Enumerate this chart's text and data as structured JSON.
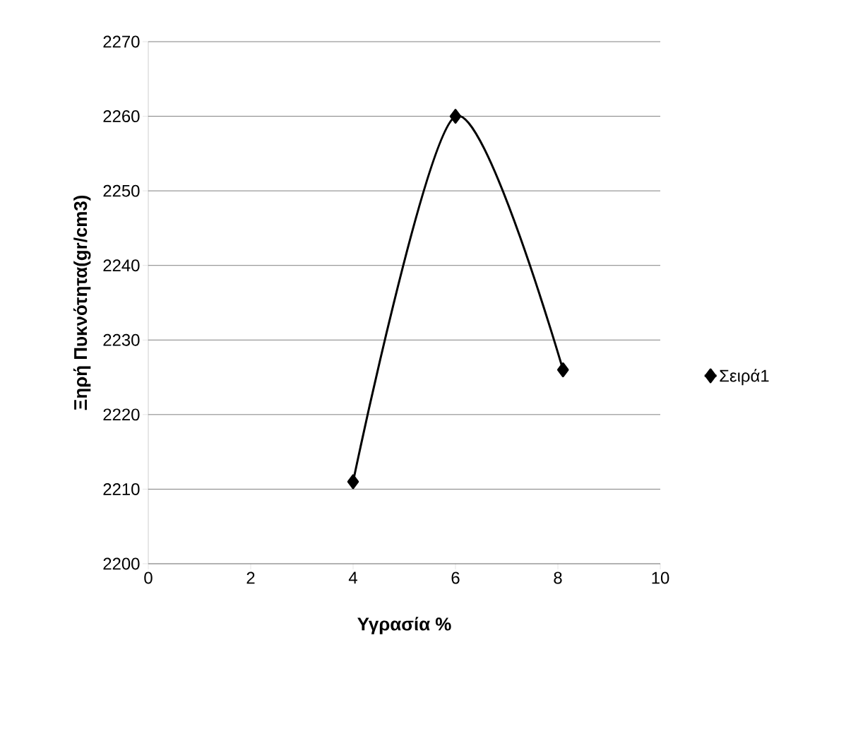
{
  "chart_data": {
    "type": "line",
    "xlabel": "Υγρασία %",
    "ylabel": "Ξηρή Πυκνότητα(gr/cm3)",
    "x": [
      4,
      6,
      8.1
    ],
    "series": [
      {
        "name": "Σειρά1",
        "color": "#000000",
        "values": [
          2211,
          2260,
          2226
        ]
      }
    ],
    "xlim": [
      0,
      10
    ],
    "ylim": [
      2200,
      2270
    ],
    "xticks": [
      0,
      2,
      4,
      6,
      8,
      10
    ],
    "yticks": [
      2200,
      2210,
      2220,
      2230,
      2240,
      2250,
      2260,
      2270
    ],
    "grid": "y",
    "legend": "right",
    "marker": "diamond",
    "line_style": "solid"
  }
}
